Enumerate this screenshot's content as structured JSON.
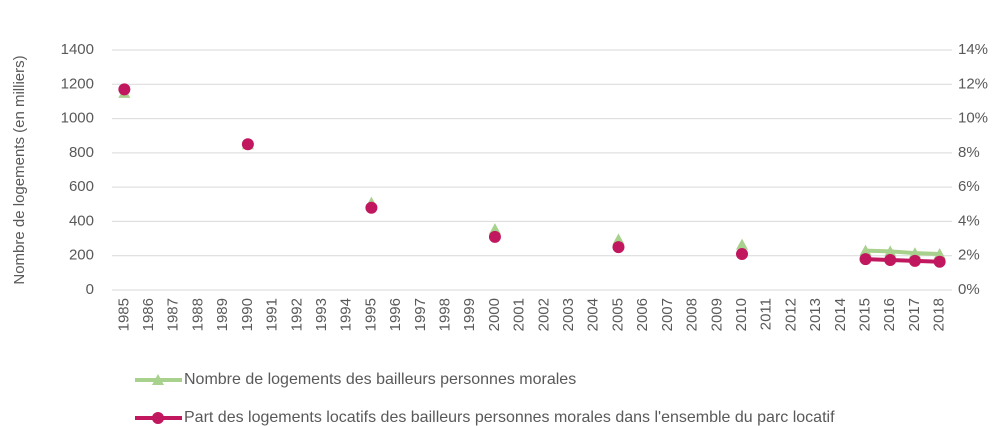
{
  "chart_data": {
    "type": "line",
    "y_label": "Nombre de logements (en milliers)",
    "categories": [
      "1985",
      "1986",
      "1987",
      "1988",
      "1989",
      "1990",
      "1991",
      "1992",
      "1993",
      "1994",
      "1995",
      "1996",
      "1997",
      "1998",
      "1999",
      "2000",
      "2001",
      "2002",
      "2003",
      "2004",
      "2005",
      "2006",
      "2007",
      "2008",
      "2009",
      "2010",
      "2011",
      "2012",
      "2013",
      "2014",
      "2015",
      "2016",
      "2017",
      "2018"
    ],
    "series": [
      {
        "name": "Nombre de logements des bailleurs personnes morales",
        "color": "#a9d18e",
        "marker": "triangle",
        "values": [
          1150,
          null,
          null,
          null,
          null,
          850,
          null,
          null,
          null,
          null,
          510,
          null,
          null,
          null,
          null,
          355,
          null,
          null,
          null,
          null,
          295,
          null,
          null,
          null,
          null,
          265,
          null,
          null,
          null,
          null,
          230,
          225,
          215,
          210
        ]
      },
      {
        "name": "Part des logements locatifs des bailleurs personnes morales dans l'ensemble du parc locatif",
        "color": "#c0175f",
        "marker": "circle",
        "axis": "y2",
        "values": [
          11.7,
          null,
          null,
          null,
          null,
          8.5,
          null,
          null,
          null,
          null,
          4.8,
          null,
          null,
          null,
          null,
          3.1,
          null,
          null,
          null,
          null,
          2.5,
          null,
          null,
          null,
          null,
          2.1,
          null,
          null,
          null,
          null,
          1.8,
          1.75,
          1.7,
          1.65
        ]
      }
    ],
    "ylim": [
      0,
      1400
    ],
    "yticks": [
      0,
      200,
      400,
      600,
      800,
      1000,
      1200,
      1400
    ],
    "y2lim": [
      0,
      14
    ],
    "y2ticks": [
      {
        "value": 0,
        "label": "0%"
      },
      {
        "value": 2,
        "label": "2%"
      },
      {
        "value": 4,
        "label": "4%"
      },
      {
        "value": 6,
        "label": "6%"
      },
      {
        "value": 8,
        "label": "8%"
      },
      {
        "value": 10,
        "label": "10%"
      },
      {
        "value": 12,
        "label": "12%"
      },
      {
        "value": 14,
        "label": "14%"
      }
    ],
    "grid": true,
    "legend": "bottom"
  }
}
